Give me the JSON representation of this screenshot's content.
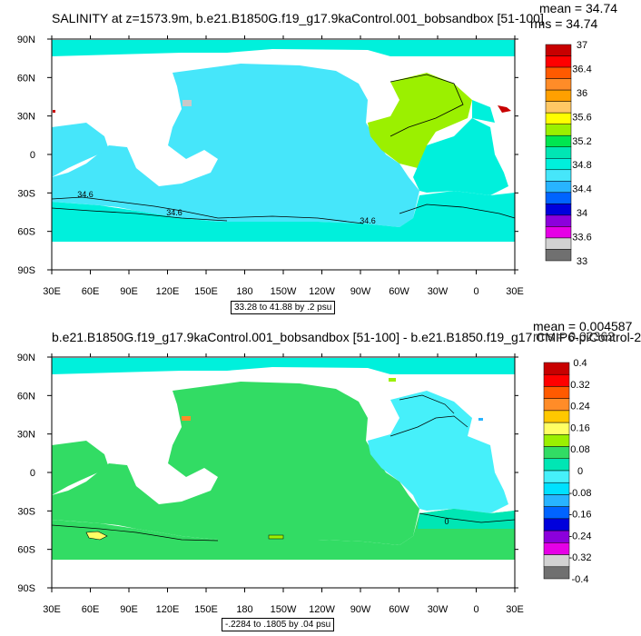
{
  "chart_data": [
    {
      "type": "heatmap",
      "title": "SALINITY at z=1573.9m, b.e21.B1850G.f19_g17.9kaControl.001_bobsandbox [51-100]",
      "stats": {
        "mean": "mean = 34.74",
        "rms": "rms = 34.74"
      },
      "range_label": "33.28 to 41.88 by .2 psu",
      "x_ticks": [
        "30E",
        "60E",
        "90E",
        "120E",
        "150E",
        "180",
        "150W",
        "120W",
        "90W",
        "60W",
        "30W",
        "0",
        "30E"
      ],
      "y_ticks": [
        "90N",
        "60N",
        "30N",
        "0",
        "30S",
        "60S",
        "90S"
      ],
      "colorbar": {
        "labels": [
          "37",
          "36.4",
          "36",
          "35.6",
          "35.2",
          "34.8",
          "34.4",
          "34",
          "33.6",
          "33"
        ],
        "colors": [
          "#c80000",
          "#ff0000",
          "#ff5a00",
          "#ff8c28",
          "#ffa000",
          "#ffc864",
          "#ffff00",
          "#9bf000",
          "#00e650",
          "#00e6b4",
          "#00f0dc",
          "#46e6fa",
          "#28b4ff",
          "#0064ff",
          "#0000dc",
          "#8c00dc",
          "#e600e6",
          "#d2d2d2",
          "#707070"
        ]
      },
      "contour_labels": [
        "34.6",
        "34.6",
        "34.6"
      ]
    },
    {
      "type": "heatmap",
      "title": "b.e21.B1850G.f19_g17.9kaControl.001_bobsandbox [51-100] - b.e21.B1850.f19_g17.CMIP6-piControl-2",
      "stats": {
        "mean": "mean = 0.004587",
        "rms": "rms = 0.02362"
      },
      "range_label": "-.2284 to .1805 by .04 psu",
      "x_ticks": [
        "30E",
        "60E",
        "90E",
        "120E",
        "150E",
        "180",
        "150W",
        "120W",
        "90W",
        "60W",
        "30W",
        "0",
        "30E"
      ],
      "y_ticks": [
        "90N",
        "60N",
        "30N",
        "0",
        "30S",
        "60S",
        "90S"
      ],
      "colorbar": {
        "labels": [
          "0.4",
          "0.32",
          "0.24",
          "0.16",
          "0.08",
          "0",
          "-0.08",
          "-0.16",
          "-0.24",
          "-0.32",
          "-0.4"
        ],
        "colors": [
          "#c80000",
          "#ff0000",
          "#ff5a00",
          "#ff8c28",
          "#ffc800",
          "#ffff64",
          "#9bf000",
          "#32dc64",
          "#00e6b4",
          "#46f0fa",
          "#00e1ff",
          "#28b4ff",
          "#0064ff",
          "#0000dc",
          "#8c00dc",
          "#e600e6",
          "#d2d2d2",
          "#707070"
        ]
      },
      "contour_labels": [
        "0"
      ]
    }
  ]
}
